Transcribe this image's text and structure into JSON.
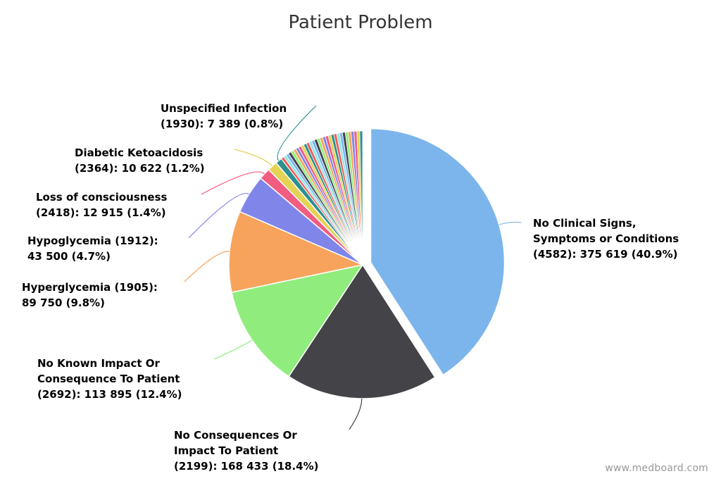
{
  "chart_data": {
    "type": "pie",
    "title": "Patient Problem",
    "slices": [
      {
        "label_lines": [
          "No Clinical Signs,",
          "Symptoms or Conditions",
          "(4582): 375 619 (40.9%)"
        ],
        "value": 375619,
        "percent": 40.9,
        "color": "#7cb5ec",
        "sliced": true
      },
      {
        "label_lines": [
          "No Consequences Or",
          "Impact To Patient",
          "(2199): 168 433 (18.4%)"
        ],
        "value": 168433,
        "percent": 18.4,
        "color": "#434348"
      },
      {
        "label_lines": [
          "No Known Impact Or",
          "Consequence To Patient",
          "(2692): 113 895 (12.4%)"
        ],
        "value": 113895,
        "percent": 12.4,
        "color": "#90ed7d"
      },
      {
        "label_lines": [
          "Hyperglycemia (1905):",
          "89 750 (9.8%)"
        ],
        "value": 89750,
        "percent": 9.8,
        "color": "#f7a35c"
      },
      {
        "label_lines": [
          "Hypoglycemia (1912):",
          "43 500 (4.7%)"
        ],
        "value": 43500,
        "percent": 4.7,
        "color": "#8085e9"
      },
      {
        "label_lines": [
          "Loss of consciousness",
          "(2418): 12 915 (1.4%)"
        ],
        "value": 12915,
        "percent": 1.4,
        "color": "#f15c80"
      },
      {
        "label_lines": [
          "Diabetic Ketoacidosis",
          "(2364): 10 622 (1.2%)"
        ],
        "value": 10622,
        "percent": 1.2,
        "color": "#e4d354"
      },
      {
        "label_lines": [
          "Unspecified Infection",
          "(1930): 7 389 (0.8%)"
        ],
        "value": 7389,
        "percent": 0.8,
        "color": "#2b908f"
      }
    ],
    "other_small_slices_colors": [
      "#f45b5b",
      "#91e8e1",
      "#7cb5ec",
      "#434348",
      "#90ed7d",
      "#f7a35c",
      "#8085e9",
      "#f15c80",
      "#e4d354",
      "#2b908f",
      "#f45b5b",
      "#91e8e1",
      "#7cb5ec",
      "#434348",
      "#90ed7d",
      "#f7a35c",
      "#8085e9",
      "#f15c80",
      "#e4d354",
      "#2b908f",
      "#f45b5b",
      "#91e8e1",
      "#7cb5ec",
      "#434348",
      "#90ed7d",
      "#f7a35c",
      "#8085e9",
      "#f15c80",
      "#e4d354",
      "#2b908f"
    ],
    "legend": false
  },
  "credit": "www.medboard.com"
}
